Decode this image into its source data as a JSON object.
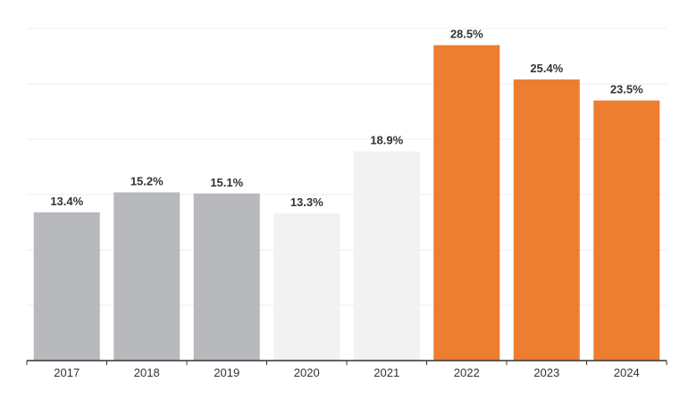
{
  "chart_data": {
    "type": "bar",
    "categories": [
      "2017",
      "2018",
      "2019",
      "2020",
      "2021",
      "2022",
      "2023",
      "2024"
    ],
    "values": [
      13.4,
      15.2,
      15.1,
      13.3,
      18.9,
      28.5,
      25.4,
      23.5
    ],
    "data_labels": [
      "13.4%",
      "15.2%",
      "15.1%",
      "13.3%",
      "18.9%",
      "28.5%",
      "25.4%",
      "23.5%"
    ],
    "bar_colors": [
      "#b8b9bd",
      "#b8b9bd",
      "#b8b9bd",
      "#f2f2f2",
      "#f2f2f2",
      "#ed7d31",
      "#ed7d31",
      "#ed7d31"
    ],
    "title": "",
    "xlabel": "",
    "ylabel": "",
    "ylim": [
      0,
      30
    ],
    "grid": true,
    "grid_color": "#eeeeee",
    "axis_color": "#333333"
  }
}
